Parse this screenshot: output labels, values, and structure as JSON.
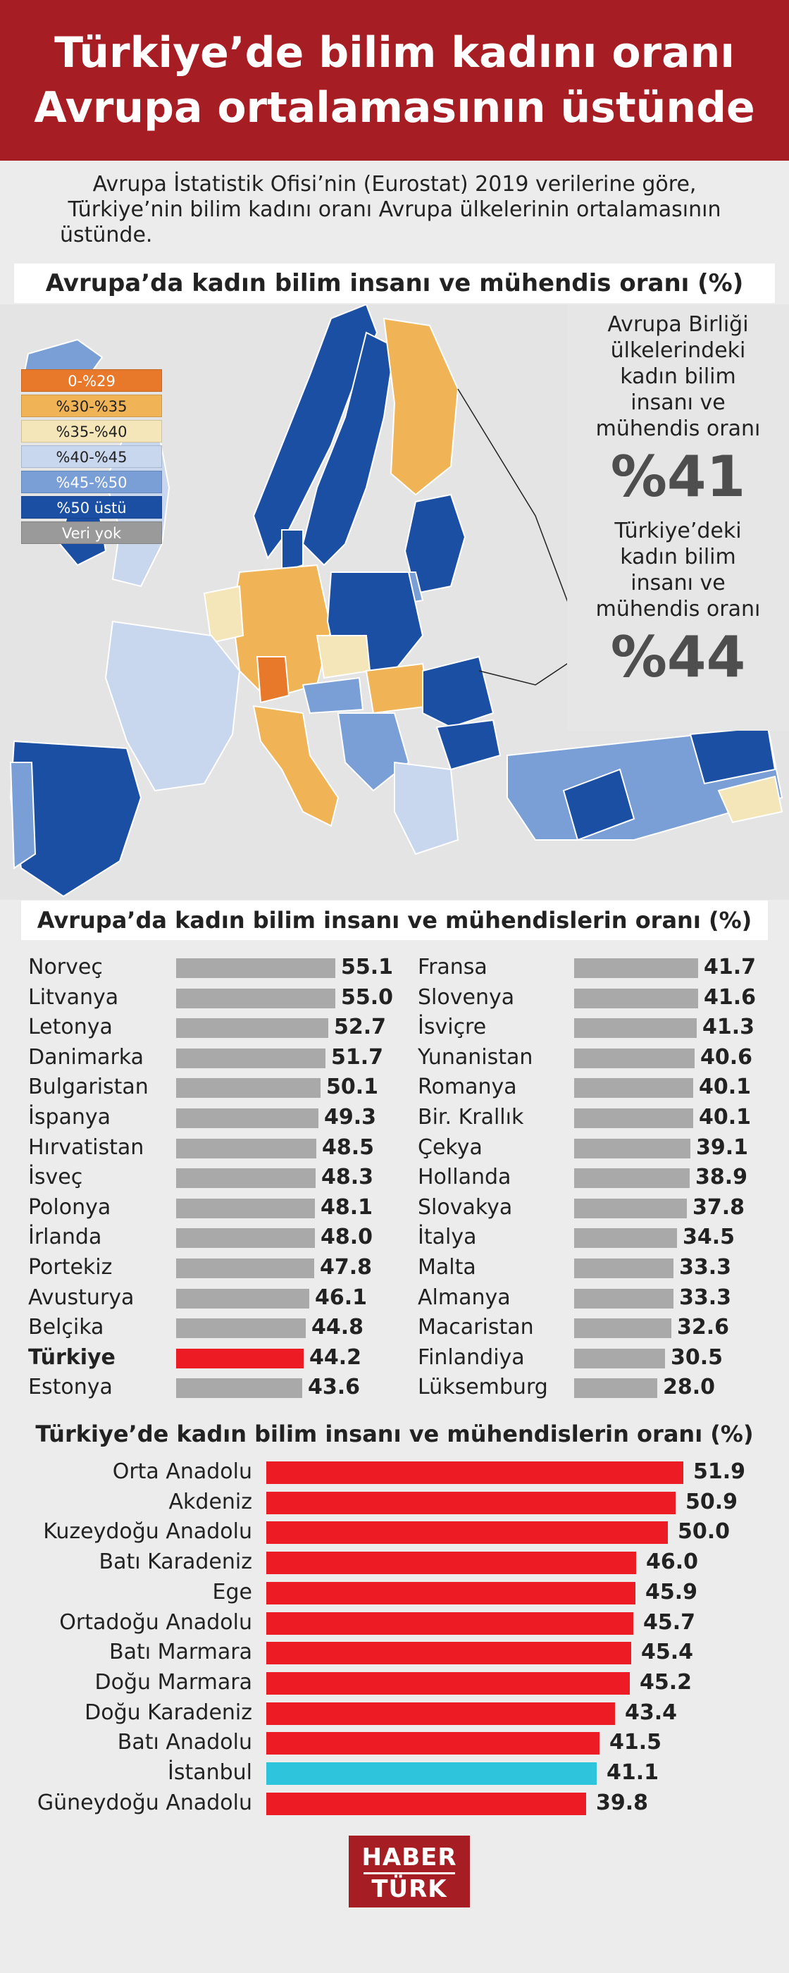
{
  "header": {
    "line1": "Türkiye’de bilim kadını oranı",
    "line2": "Avrupa ortalamasının üstünde"
  },
  "intro": {
    "line1": "Avrupa İstatistik Ofisi’nin (Eurostat) 2019 verilerine göre,",
    "line2": "Türkiye’nin bilim kadını oranı Avrupa ülkelerinin ortalamasının",
    "line3": "üstünde."
  },
  "map": {
    "title": "Avrupa’da kadın bilim insanı ve mühendis oranı (%)",
    "legend": [
      {
        "label": "0-%29",
        "color": "#e8792b",
        "text": "#ffffff"
      },
      {
        "label": "%30-%35",
        "color": "#f0b456",
        "text": "#222222"
      },
      {
        "label": "%35-%40",
        "color": "#f4e6b8",
        "text": "#222222"
      },
      {
        "label": "%40-%45",
        "color": "#c8d6ee",
        "text": "#222222"
      },
      {
        "label": "%45-%50",
        "color": "#7a9fd6",
        "text": "#ffffff"
      },
      {
        "label": "%50 üstü",
        "color": "#1b4fa3",
        "text": "#ffffff"
      },
      {
        "label": "Veri yok",
        "color": "#9a9a9a",
        "text": "#ffffff"
      }
    ],
    "eu_text": [
      "Avrupa Birliği",
      "ülkelerindeki",
      "kadın bilim",
      "insanı ve",
      "mühendis oranı"
    ],
    "eu_value": "%41",
    "tr_text": [
      "Türkiye’deki",
      "kadın bilim",
      "insanı ve",
      "mühendis oranı"
    ],
    "tr_value": "%44"
  },
  "chart_data": [
    {
      "type": "bar",
      "title": "Avrupa’da kadın bilim insanı ve mühendislerin oranı (%)",
      "highlight": "Türkiye",
      "highlight_color": "#ed1c24",
      "bar_color": "#a9a9a9",
      "categories": [
        "Norveç",
        "Litvanya",
        "Letonya",
        "Danimarka",
        "Bulgaristan",
        "İspanya",
        "Hırvatistan",
        "İsveç",
        "Polonya",
        "İrlanda",
        "Portekiz",
        "Avusturya",
        "Belçika",
        "Türkiye",
        "Estonya",
        "Fransa",
        "Slovenya",
        "İsviçre",
        "Yunanistan",
        "Romanya",
        "Bir. Krallık",
        "Çekya",
        "Hollanda",
        "Slovakya",
        "İtalya",
        "Malta",
        "Almanya",
        "Macaristan",
        "Finlandiya",
        "Lüksemburg"
      ],
      "values": [
        55.1,
        55.0,
        52.7,
        51.7,
        50.1,
        49.3,
        48.5,
        48.3,
        48.1,
        48.0,
        47.8,
        46.1,
        44.8,
        44.2,
        43.6,
        41.7,
        41.6,
        41.3,
        40.6,
        40.1,
        40.1,
        39.1,
        38.9,
        37.8,
        34.5,
        33.3,
        33.3,
        32.6,
        30.5,
        28.0
      ],
      "labels": [
        "55.1",
        "55.0",
        "52.7",
        "51.7",
        "50.1",
        "49.3",
        "48.5",
        "48.3",
        "48.1",
        "48.0",
        "47.8",
        "46.1",
        "44.8",
        "44.2",
        "43.6",
        "41.7",
        "41.6",
        "41.3",
        "40.6",
        "40.1",
        "40.1",
        "39.1",
        "38.9",
        "37.8",
        "34.5",
        "33.3",
        "33.3",
        "32.6",
        "30.5",
        "28.0"
      ]
    },
    {
      "type": "bar",
      "title": "Türkiye’de kadın bilim insanı ve mühendislerin oranı (%)",
      "highlight": "İstanbul",
      "highlight_color": "#2ec4dc",
      "bar_color": "#ed1c24",
      "categories": [
        "Orta Anadolu",
        "Akdeniz",
        "Kuzeydoğu Anadolu",
        "Batı Karadeniz",
        "Ege",
        "Ortadoğu Anadolu",
        "Batı Marmara",
        "Doğu Marmara",
        "Doğu Karadeniz",
        "Batı Anadolu",
        "İstanbul",
        "Güneydoğu Anadolu"
      ],
      "values": [
        51.9,
        50.9,
        50.0,
        46.0,
        45.9,
        45.7,
        45.4,
        45.2,
        43.4,
        41.5,
        41.1,
        39.8
      ],
      "labels": [
        "51.9",
        "50.9",
        "50.0",
        "46.0",
        "45.9",
        "45.7",
        "45.4",
        "45.2",
        "43.4",
        "41.5",
        "41.1",
        "39.8"
      ]
    }
  ],
  "logo": {
    "line1": "HABER",
    "line2": "TÜRK"
  }
}
